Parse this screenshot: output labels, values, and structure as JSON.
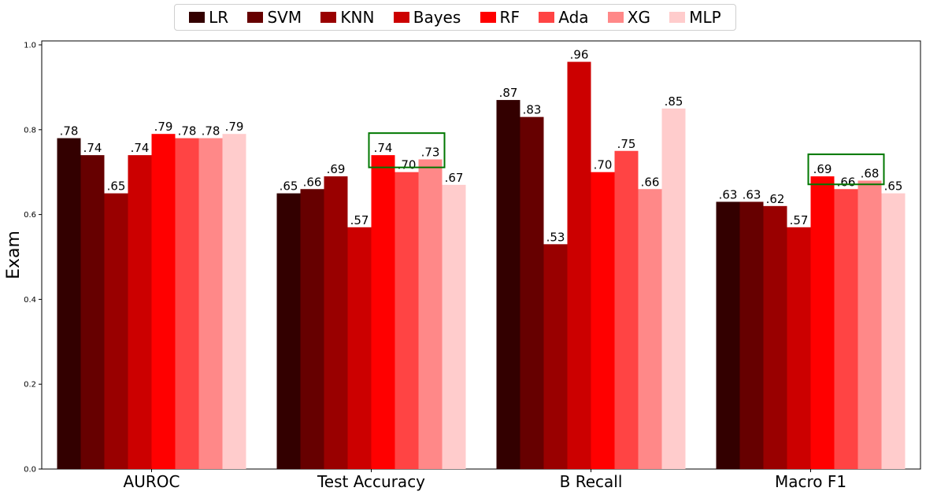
{
  "chart_data": {
    "type": "bar",
    "title": "",
    "xlabel": "",
    "ylabel": "Exam",
    "ylim": [
      0,
      1.0
    ],
    "yticks": [
      "0.0",
      "0.2",
      "0.4",
      "0.6",
      "0.8",
      "1.0"
    ],
    "categories": [
      "AUROC",
      "Test Accuracy",
      "B Recall",
      "Macro F1"
    ],
    "legend_position": "top-center",
    "series": [
      {
        "name": "LR",
        "color": "#330000",
        "values": [
          0.78,
          0.65,
          0.87,
          0.63
        ],
        "labels": [
          ".78",
          ".65",
          ".87",
          ".63"
        ]
      },
      {
        "name": "SVM",
        "color": "#660000",
        "values": [
          0.74,
          0.66,
          0.83,
          0.63
        ],
        "labels": [
          ".74",
          ".66",
          ".83",
          ".63"
        ]
      },
      {
        "name": "KNN",
        "color": "#990000",
        "values": [
          0.65,
          0.69,
          0.53,
          0.62
        ],
        "labels": [
          ".65",
          ".69",
          ".53",
          ".62"
        ]
      },
      {
        "name": "Bayes",
        "color": "#cc0000",
        "values": [
          0.74,
          0.57,
          0.96,
          0.57
        ],
        "labels": [
          ".74",
          ".57",
          ".96",
          ".57"
        ]
      },
      {
        "name": "RF",
        "color": "#ff0000",
        "values": [
          0.79,
          0.74,
          0.7,
          0.69
        ],
        "labels": [
          ".79",
          ".74",
          ".70",
          ".69"
        ]
      },
      {
        "name": "Ada",
        "color": "#ff4444",
        "values": [
          0.78,
          0.7,
          0.75,
          0.66
        ],
        "labels": [
          ".78",
          ".70",
          ".75",
          ".66"
        ]
      },
      {
        "name": "XG",
        "color": "#ff8888",
        "values": [
          0.78,
          0.73,
          0.66,
          0.68
        ],
        "labels": [
          ".78",
          ".73",
          ".66",
          ".68"
        ]
      },
      {
        "name": "MLP",
        "color": "#ffcccc",
        "values": [
          0.79,
          0.67,
          0.85,
          0.65
        ],
        "labels": [
          ".79",
          ".67",
          ".85",
          ".65"
        ]
      }
    ],
    "highlights": [
      {
        "category": "Test Accuracy",
        "series": [
          "RF",
          "Ada",
          "XG"
        ],
        "color": "#007700"
      },
      {
        "category": "Macro F1",
        "series": [
          "RF",
          "Ada",
          "XG"
        ],
        "color": "#007700"
      }
    ]
  }
}
